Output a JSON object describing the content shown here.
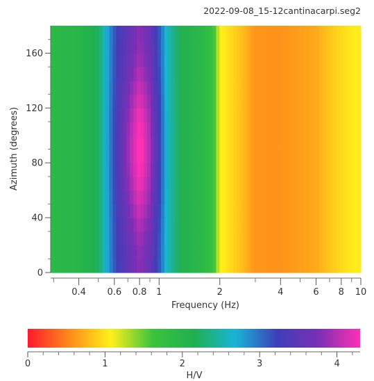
{
  "chart_data": {
    "type": "heatmap",
    "title": "2022-09-08_15-12cantinacarpi.seg2",
    "xlabel": "Frequency (Hz)",
    "ylabel": "Azimuth (degrees)",
    "x_scale": "log",
    "xlim": [
      0.29,
      10
    ],
    "ylim": [
      0,
      180
    ],
    "x_ticks": [
      {
        "value": 0.4,
        "label": "0.4"
      },
      {
        "value": 0.6,
        "label": "0.6"
      },
      {
        "value": 0.8,
        "label": "0.8"
      },
      {
        "value": 1,
        "label": "1"
      },
      {
        "value": 2,
        "label": "2"
      },
      {
        "value": 4,
        "label": "4"
      },
      {
        "value": 6,
        "label": "6"
      },
      {
        "value": 8,
        "label": "8"
      },
      {
        "value": 10,
        "label": "10"
      }
    ],
    "y_ticks": [
      {
        "value": 0,
        "label": "0"
      },
      {
        "value": 40,
        "label": "40"
      },
      {
        "value": 80,
        "label": "80"
      },
      {
        "value": 120,
        "label": "120"
      },
      {
        "value": 160,
        "label": "160"
      }
    ],
    "hv_profile": [
      {
        "frequency": 0.29,
        "hv": 1.9
      },
      {
        "frequency": 0.4,
        "hv": 2.0
      },
      {
        "frequency": 0.5,
        "hv": 2.2
      },
      {
        "frequency": 0.56,
        "hv": 2.8
      },
      {
        "frequency": 0.62,
        "hv": 3.3
      },
      {
        "frequency": 0.72,
        "hv": 3.8
      },
      {
        "frequency": 0.8,
        "hv": 4.1
      },
      {
        "frequency": 0.9,
        "hv": 3.8
      },
      {
        "frequency": 1.0,
        "hv": 3.2
      },
      {
        "frequency": 1.1,
        "hv": 2.6
      },
      {
        "frequency": 1.3,
        "hv": 2.1
      },
      {
        "frequency": 1.6,
        "hv": 1.95
      },
      {
        "frequency": 1.85,
        "hv": 1.7
      },
      {
        "frequency": 2.0,
        "hv": 1.1
      },
      {
        "frequency": 2.5,
        "hv": 0.85
      },
      {
        "frequency": 3.0,
        "hv": 0.6
      },
      {
        "frequency": 4.0,
        "hv": 0.58
      },
      {
        "frequency": 5.0,
        "hv": 0.65
      },
      {
        "frequency": 6.0,
        "hv": 0.7
      },
      {
        "frequency": 7.0,
        "hv": 0.85
      },
      {
        "frequency": 8.5,
        "hv": 1.0
      },
      {
        "frequency": 10,
        "hv": 1.1
      }
    ],
    "colorbar": {
      "label": "H/V",
      "range": [
        0,
        4.3
      ],
      "ticks": [
        {
          "value": 0,
          "label": "0"
        },
        {
          "value": 1,
          "label": "1"
        },
        {
          "value": 2,
          "label": "2"
        },
        {
          "value": 3,
          "label": "3"
        },
        {
          "value": 4,
          "label": "4"
        }
      ],
      "colors": [
        "#ff1a2e",
        "#ff8a1a",
        "#fff01a",
        "#3cc33c",
        "#20b050",
        "#18b4d8",
        "#3d3fb8",
        "#7a2fb5",
        "#ff30b4"
      ]
    },
    "grid": false
  }
}
